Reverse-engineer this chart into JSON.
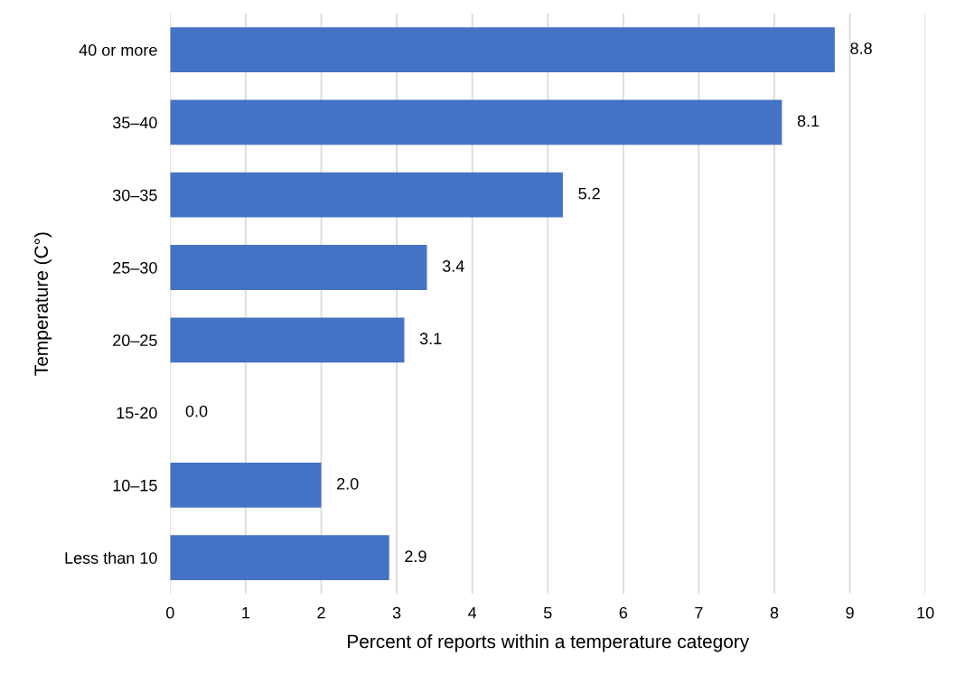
{
  "chart_data": {
    "type": "bar",
    "orientation": "horizontal",
    "categories": [
      "40 or more",
      "35–40",
      "30–35",
      "25–30",
      "20–25",
      "15-20",
      "10–15",
      "Less than 10"
    ],
    "values": [
      8.8,
      8.1,
      5.2,
      3.4,
      3.1,
      0.0,
      2.0,
      2.9
    ],
    "value_labels": [
      "8.8",
      "8.1",
      "5.2",
      "3.4",
      "3.1",
      "0.0",
      "2.0",
      "2.9"
    ],
    "color": "#4472c4",
    "xlabel": "Percent of reports within a temperature category",
    "ylabel": "Temperature (C°)",
    "xlim": [
      0,
      10
    ],
    "xticks": [
      0,
      1,
      2,
      3,
      4,
      5,
      6,
      7,
      8,
      9,
      10
    ],
    "grid": "x",
    "legend": false
  }
}
